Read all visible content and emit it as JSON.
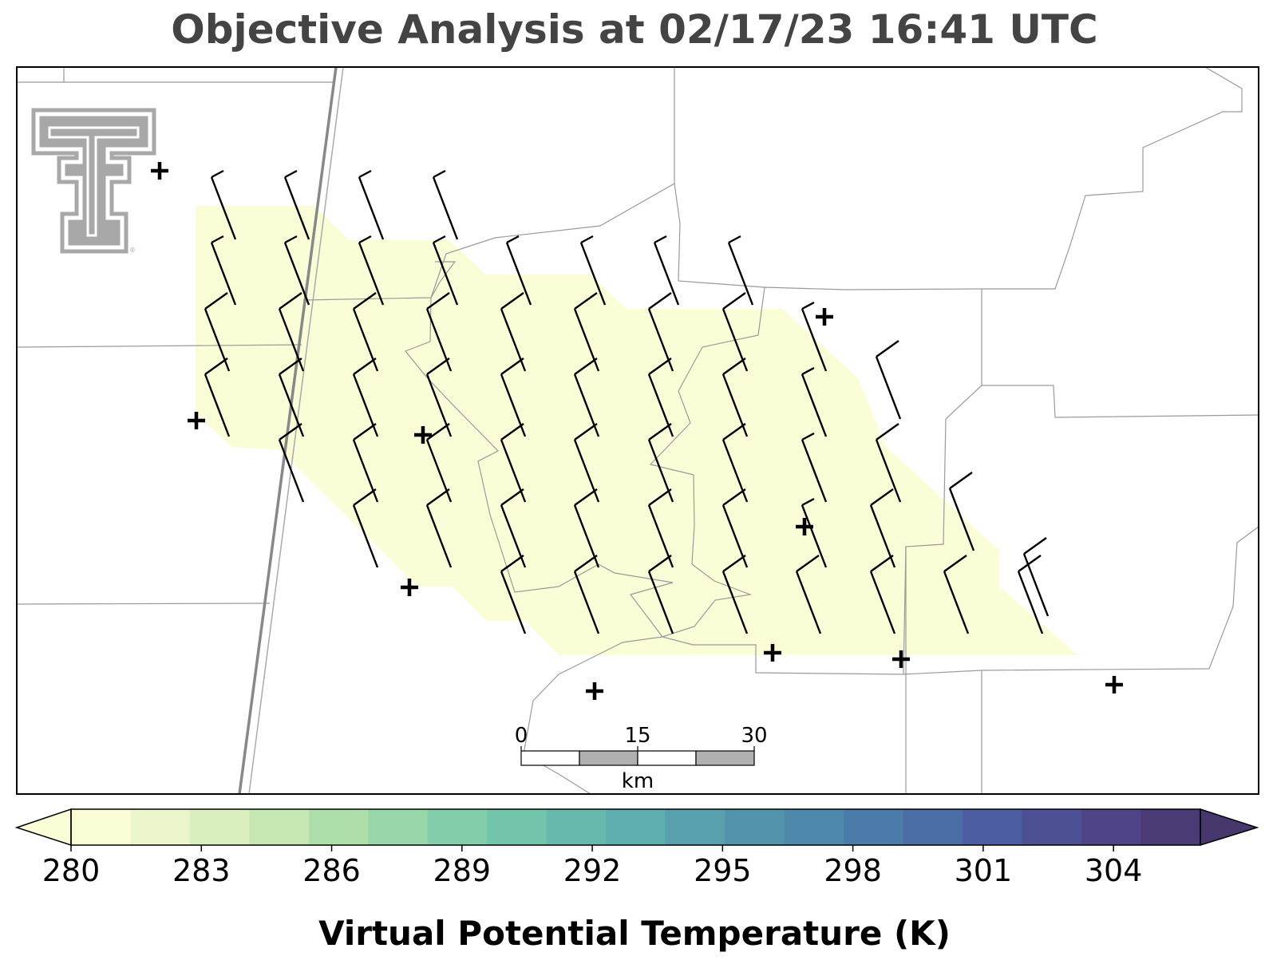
{
  "title": "Objective Analysis at 02/17/23 16:41 UTC",
  "colorbar": {
    "label": "Virtual Potential Temperature (K)",
    "ticks": [
      "280",
      "283",
      "286",
      "289",
      "292",
      "295",
      "298",
      "301",
      "304"
    ],
    "min": 280,
    "max": 306,
    "colormap": [
      "#fbfdd6",
      "#ebf6cc",
      "#d9efc0",
      "#c5e7b4",
      "#aedfaa",
      "#97d6a7",
      "#82ceaa",
      "#72c4ab",
      "#67b9ad",
      "#5eadaf",
      "#58a0ae",
      "#5394ad",
      "#4e88ab",
      "#4a7ba9",
      "#4a6da6",
      "#4c5ea1",
      "#4e5096",
      "#4e4486",
      "#4a3b74"
    ]
  },
  "scale_bar": {
    "unit": "km",
    "labels": [
      "0",
      "15",
      "30"
    ]
  },
  "analysis": {
    "shaded_value_K": 280,
    "shaded_color": "#fbfdd6"
  },
  "icons": {
    "logo": "texas-tech-double-t-logo",
    "station": "plus-marker",
    "wind": "wind-barb"
  }
}
